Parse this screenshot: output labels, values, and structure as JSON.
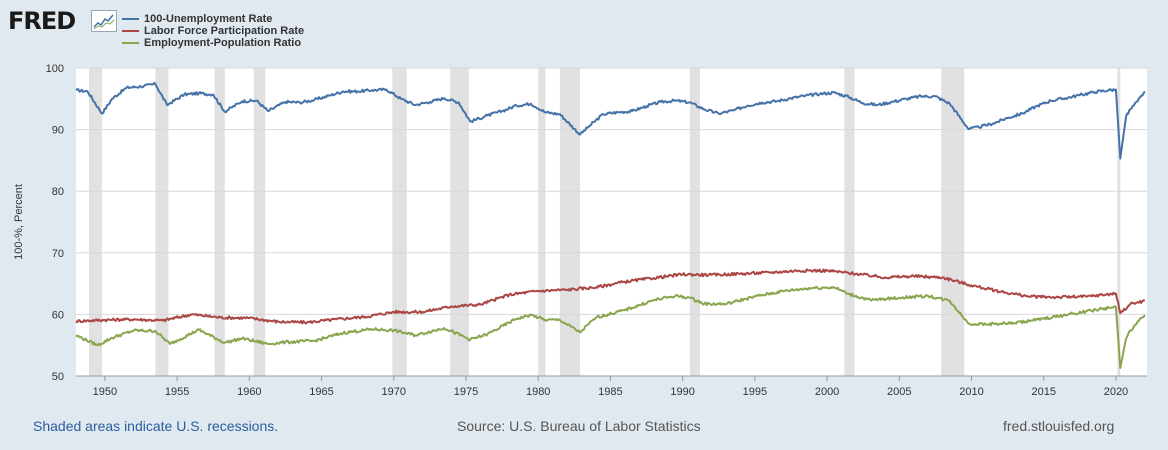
{
  "header": {
    "logo_text": "FRED",
    "logo_icon": "sparkline-chart-icon"
  },
  "footer": {
    "recession_note": "Shaded areas indicate U.S. recessions.",
    "source": "Source: U.S. Bureau of Labor Statistics",
    "site": "fred.stlouisfed.org"
  },
  "chart_data": {
    "type": "line",
    "title": "",
    "xlabel": "",
    "ylabel": "100-%, Percent",
    "xlim": [
      1948.0,
      2022.15
    ],
    "ylim": [
      50,
      100
    ],
    "y_ticks": [
      50,
      60,
      70,
      80,
      90,
      100
    ],
    "x_ticks": [
      1950,
      1955,
      1960,
      1965,
      1970,
      1975,
      1980,
      1985,
      1990,
      1995,
      2000,
      2005,
      2010,
      2015,
      2020
    ],
    "grid": "horizontal",
    "legend_position": "top-left",
    "recessions": [
      [
        1948.9,
        1949.8
      ],
      [
        1953.5,
        1954.4
      ],
      [
        1957.6,
        1958.3
      ],
      [
        1960.3,
        1961.1
      ],
      [
        1969.9,
        1970.9
      ],
      [
        1973.9,
        1975.2
      ],
      [
        1980.0,
        1980.5
      ],
      [
        1981.5,
        1982.9
      ],
      [
        1990.5,
        1991.2
      ],
      [
        2001.2,
        2001.9
      ],
      [
        2007.9,
        2009.5
      ],
      [
        2020.1,
        2020.3
      ]
    ],
    "series": [
      {
        "name": "100-Unemployment Rate",
        "color": "#4572a7",
        "x": [
          1948.0,
          1948.8,
          1949.8,
          1950.5,
          1951.5,
          1952.5,
          1953.5,
          1954.3,
          1955.5,
          1956.5,
          1957.5,
          1958.3,
          1959.5,
          1960.5,
          1961.3,
          1962.5,
          1963.5,
          1964.5,
          1965.5,
          1966.5,
          1967.5,
          1968.5,
          1969.5,
          1970.5,
          1971.5,
          1972.5,
          1973.5,
          1974.5,
          1975.3,
          1976.5,
          1977.5,
          1978.5,
          1979.5,
          1980.5,
          1981.5,
          1982.9,
          1983.5,
          1984.5,
          1985.5,
          1986.5,
          1987.5,
          1988.5,
          1989.5,
          1990.5,
          1991.5,
          1992.5,
          1993.5,
          1994.5,
          1995.5,
          1996.5,
          1997.5,
          1998.5,
          1999.5,
          2000.5,
          2001.5,
          2002.5,
          2003.5,
          2004.5,
          2005.5,
          2006.5,
          2007.5,
          2008.5,
          2009.8,
          2010.5,
          2011.5,
          2012.5,
          2013.5,
          2014.5,
          2015.5,
          2016.5,
          2017.5,
          2018.5,
          2019.5,
          2020.0,
          2020.3,
          2020.7,
          2021.0,
          2021.5,
          2022.0
        ],
        "values": [
          96.4,
          96.2,
          92.6,
          95.0,
          96.8,
          97.0,
          97.4,
          94.0,
          95.7,
          95.9,
          95.7,
          92.9,
          94.6,
          94.7,
          93.0,
          94.5,
          94.4,
          94.8,
          95.5,
          96.2,
          96.2,
          96.4,
          96.5,
          95.0,
          94.0,
          94.5,
          95.1,
          94.4,
          91.3,
          92.3,
          93.0,
          93.9,
          94.2,
          92.8,
          92.5,
          89.2,
          90.5,
          92.5,
          92.8,
          93.0,
          93.8,
          94.5,
          94.7,
          94.4,
          93.3,
          92.6,
          93.1,
          93.9,
          94.4,
          94.6,
          95.1,
          95.5,
          95.8,
          96.0,
          95.3,
          94.3,
          94.0,
          94.5,
          95.0,
          95.4,
          95.4,
          94.2,
          90.1,
          90.4,
          91.0,
          91.9,
          92.6,
          93.8,
          94.7,
          95.1,
          95.6,
          96.1,
          96.4,
          96.5,
          85.3,
          92.1,
          93.3,
          94.6,
          96.2
        ]
      },
      {
        "name": "Labor Force Participation Rate",
        "color": "#aa4643",
        "x": [
          1948.0,
          1950.0,
          1952.0,
          1954.0,
          1956.0,
          1958.0,
          1960.0,
          1962.0,
          1964.0,
          1966.0,
          1968.0,
          1970.0,
          1972.0,
          1974.0,
          1976.0,
          1978.0,
          1980.0,
          1982.0,
          1984.0,
          1986.0,
          1988.0,
          1990.0,
          1992.0,
          1994.0,
          1996.0,
          1998.0,
          2000.0,
          2002.0,
          2004.0,
          2006.0,
          2008.0,
          2010.0,
          2012.0,
          2014.0,
          2016.0,
          2018.0,
          2020.0,
          2020.3,
          2021.0,
          2022.0
        ],
        "values": [
          58.9,
          59.1,
          59.2,
          59.0,
          60.0,
          59.5,
          59.4,
          58.8,
          58.7,
          59.2,
          59.6,
          60.4,
          60.4,
          61.3,
          61.6,
          63.2,
          63.8,
          64.0,
          64.4,
          65.3,
          65.9,
          66.5,
          66.4,
          66.6,
          66.8,
          67.1,
          67.1,
          66.6,
          66.0,
          66.2,
          66.0,
          64.7,
          63.7,
          62.9,
          62.8,
          62.9,
          63.4,
          60.2,
          61.7,
          62.2
        ]
      },
      {
        "name": "Employment-Population Ratio",
        "color": "#89a54e",
        "x": [
          1948.0,
          1949.5,
          1950.5,
          1952.0,
          1953.5,
          1954.5,
          1956.5,
          1958.3,
          1959.5,
          1961.3,
          1962.5,
          1964.5,
          1966.5,
          1968.5,
          1970.0,
          1971.5,
          1973.5,
          1975.3,
          1976.5,
          1978.5,
          1979.5,
          1980.5,
          1981.5,
          1982.9,
          1984.0,
          1986.0,
          1988.0,
          1989.5,
          1990.5,
          1991.5,
          1993.0,
          1995.0,
          1997.0,
          1999.0,
          2000.5,
          2001.5,
          2003.0,
          2005.0,
          2007.0,
          2008.5,
          2009.8,
          2011.0,
          2013.0,
          2015.0,
          2017.0,
          2019.0,
          2020.0,
          2020.3,
          2020.7,
          2021.0,
          2022.0
        ],
        "values": [
          56.6,
          55.0,
          56.2,
          57.4,
          57.3,
          55.2,
          57.5,
          55.4,
          56.1,
          55.2,
          55.5,
          55.7,
          57.0,
          57.6,
          57.4,
          56.6,
          57.8,
          55.9,
          56.8,
          59.3,
          59.9,
          59.1,
          59.1,
          57.1,
          59.5,
          60.7,
          62.3,
          63.0,
          62.7,
          61.7,
          61.7,
          62.9,
          63.8,
          64.3,
          64.4,
          63.3,
          62.3,
          62.7,
          63.0,
          62.2,
          58.5,
          58.4,
          58.6,
          59.3,
          60.1,
          60.9,
          61.2,
          51.3,
          56.1,
          57.4,
          59.9
        ]
      }
    ]
  }
}
